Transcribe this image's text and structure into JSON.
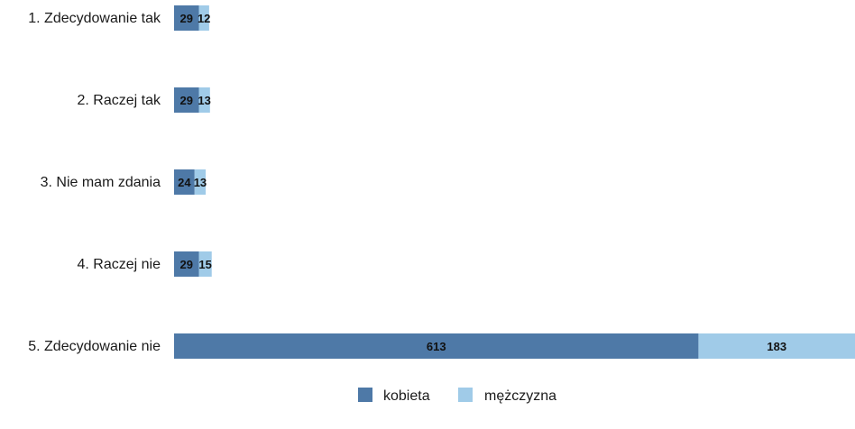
{
  "chart_data": {
    "type": "bar",
    "orientation": "horizontal",
    "stacked": true,
    "title": "",
    "xlabel": "",
    "ylabel": "",
    "categories": [
      "1. Zdecydowanie tak",
      "2. Raczej tak",
      "3. Nie mam zdania",
      "4. Raczej nie",
      "5. Zdecydowanie nie"
    ],
    "series": [
      {
        "name": "kobieta",
        "values": [
          29,
          29,
          24,
          29,
          613
        ],
        "color": "#4e79a7"
      },
      {
        "name": "mężczyzna",
        "values": [
          12,
          13,
          13,
          15,
          183
        ],
        "color": "#a0cbe8"
      }
    ],
    "xlim": [
      0,
      796
    ],
    "grid": false,
    "legend_position": "bottom"
  }
}
